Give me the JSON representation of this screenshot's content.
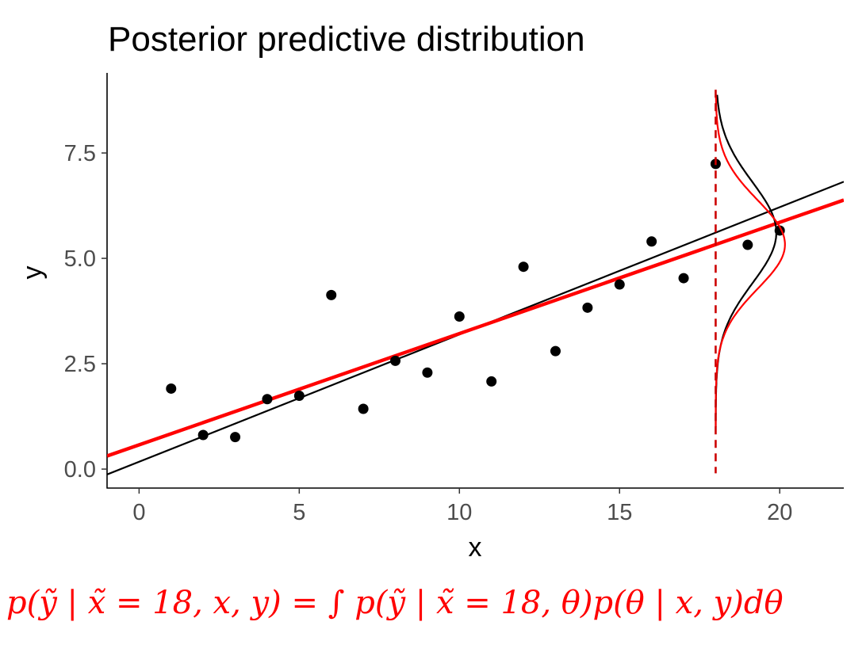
{
  "chart_data": {
    "type": "scatter",
    "title": "Posterior predictive distribution",
    "xlabel": "x",
    "ylabel": "y",
    "xlim": [
      -1,
      22
    ],
    "ylim": [
      -0.45,
      9.4
    ],
    "x_ticks": [
      0,
      5,
      10,
      15,
      20
    ],
    "x_tick_labels": [
      "0",
      "5",
      "10",
      "15",
      "20"
    ],
    "y_ticks": [
      0,
      2.5,
      5,
      7.5
    ],
    "y_tick_labels": [
      "0.0",
      "2.5",
      "5.0",
      "7.5"
    ],
    "grid": false,
    "points": [
      {
        "x": 1,
        "y": 1.91
      },
      {
        "x": 2,
        "y": 0.81
      },
      {
        "x": 3,
        "y": 0.76
      },
      {
        "x": 4,
        "y": 1.66
      },
      {
        "x": 5,
        "y": 1.74
      },
      {
        "x": 6,
        "y": 4.13
      },
      {
        "x": 7,
        "y": 1.43
      },
      {
        "x": 8,
        "y": 2.57
      },
      {
        "x": 9,
        "y": 2.29
      },
      {
        "x": 10,
        "y": 3.62
      },
      {
        "x": 11,
        "y": 2.08
      },
      {
        "x": 12,
        "y": 4.8
      },
      {
        "x": 13,
        "y": 2.8
      },
      {
        "x": 14,
        "y": 3.83
      },
      {
        "x": 15,
        "y": 4.38
      },
      {
        "x": 16,
        "y": 5.4
      },
      {
        "x": 17,
        "y": 4.53
      },
      {
        "x": 18,
        "y": 7.24
      },
      {
        "x": 19,
        "y": 5.32
      },
      {
        "x": 20,
        "y": 5.66
      }
    ],
    "fit_lines": [
      {
        "intercept": 0.174,
        "slope": 0.302,
        "color": "#000000"
      },
      {
        "intercept": 0.575,
        "slope": 0.264,
        "color": "#ff0000"
      }
    ],
    "vertical_line": {
      "x": 18,
      "color": "#cc0000",
      "style": "dashed"
    },
    "predictive_densities": [
      {
        "mean": 5.61,
        "sd": 1.2,
        "color": "#000000"
      },
      {
        "mean": 5.33,
        "sd": 1.05,
        "color": "#ff0000"
      }
    ]
  },
  "formula": {
    "text": "p(ỹ | x̃ = 18, x, y) = ∫ p(ỹ | x̃ = 18, θ)p(θ | x, y)dθ",
    "color": "#ff0000"
  }
}
